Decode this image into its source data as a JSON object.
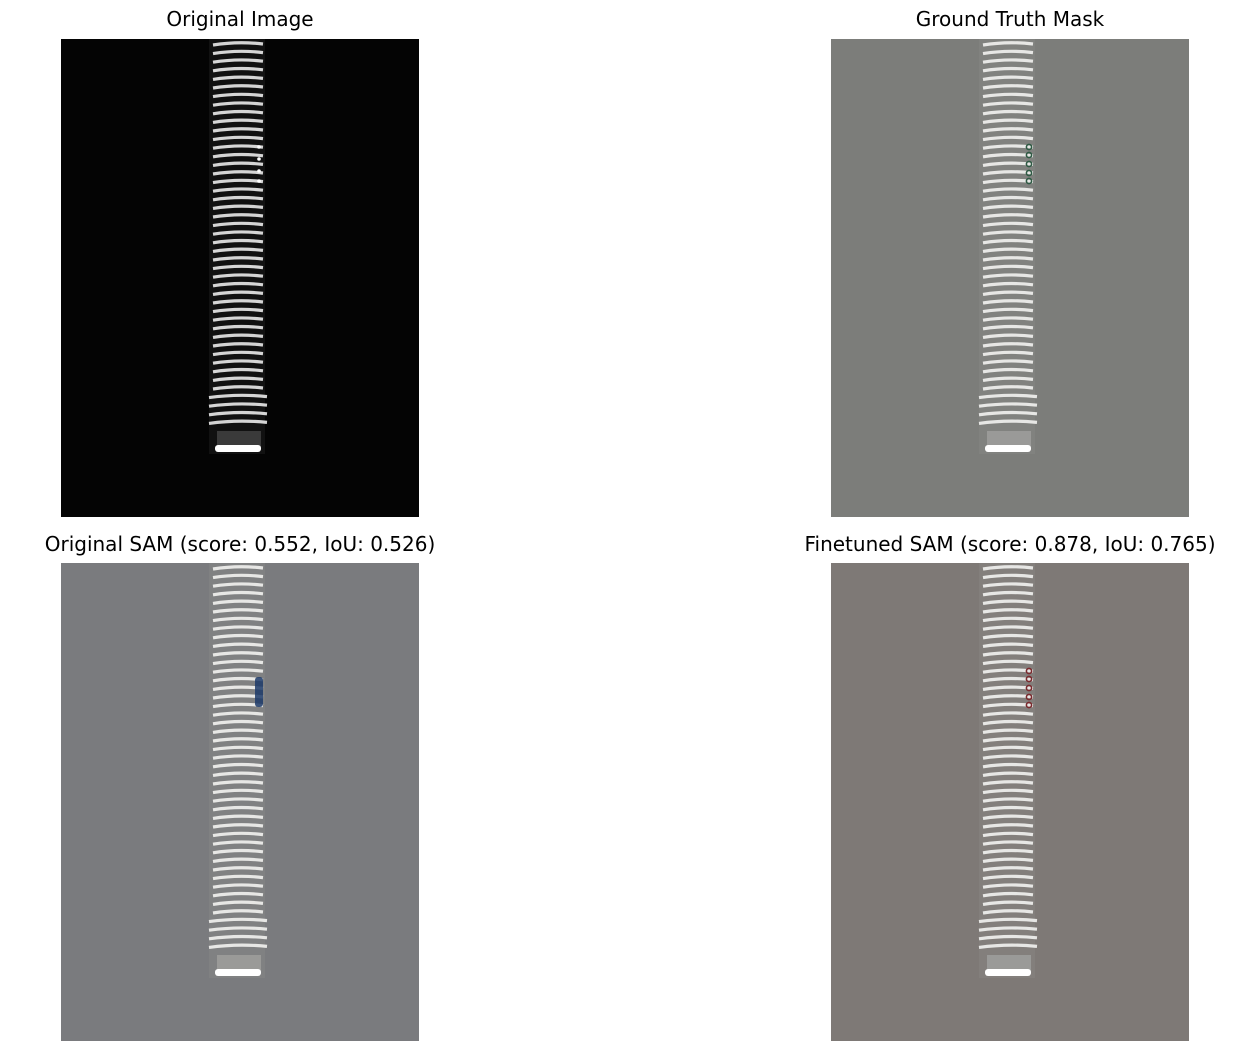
{
  "figure": {
    "panels": [
      {
        "title": "Original Image",
        "background": "#040404",
        "overlay": "none"
      },
      {
        "title": "Ground Truth Mask",
        "background": "#7c7d7a",
        "overlay": "green"
      },
      {
        "title": "Original SAM (score: 0.552, IoU: 0.526)",
        "background": "#7a7b7e",
        "overlay": "blue"
      },
      {
        "title": "Finetuned SAM (score: 0.878, IoU: 0.765)",
        "background": "#7e7976",
        "overlay": "red"
      }
    ],
    "colors": {
      "green_overlay": "#2f5a44",
      "blue_overlay": "#1c3a6a",
      "red_overlay": "#7a2a2e"
    }
  }
}
